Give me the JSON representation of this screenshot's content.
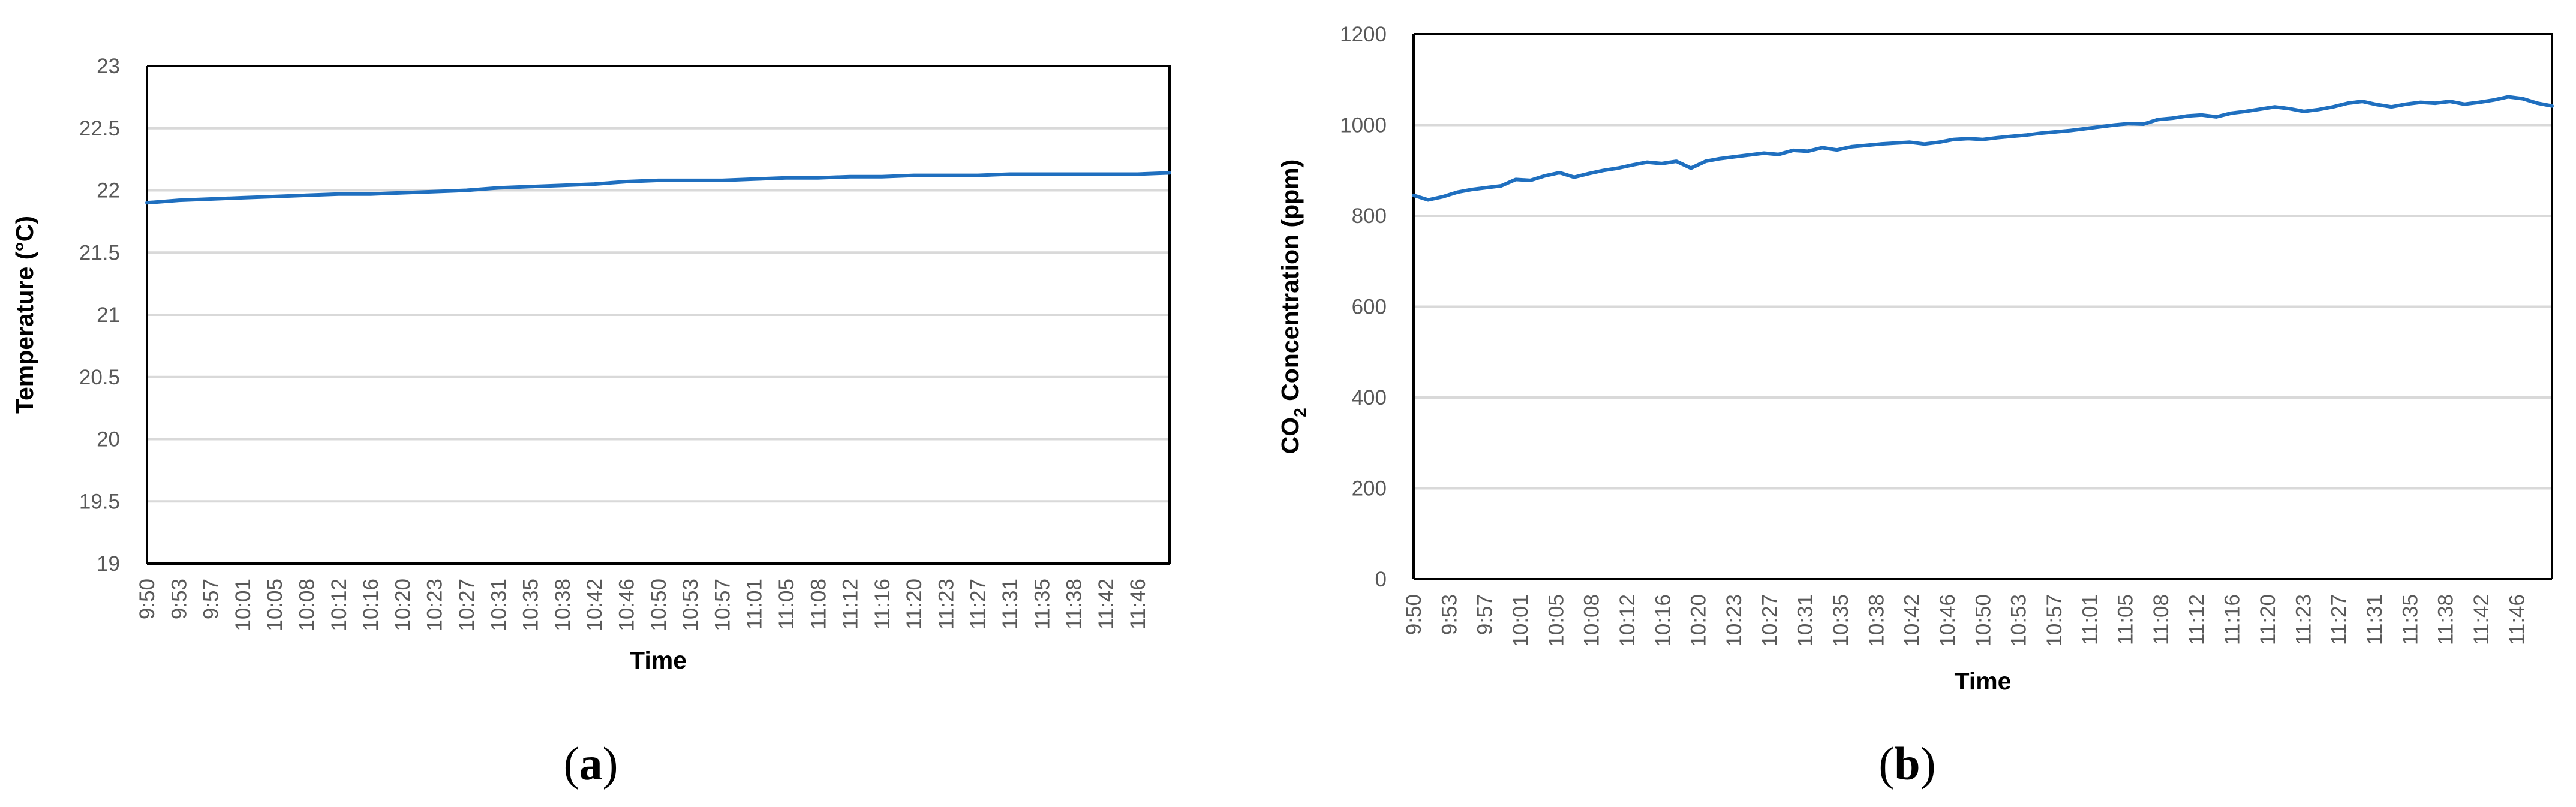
{
  "colors": {
    "series": "#1f6fbf",
    "grid": "#d9d9d9",
    "tick_text": "#595959"
  },
  "chart_data": [
    {
      "type": "line",
      "panel_label": "(a)",
      "xlabel": "Time",
      "ylabel": "Temperature (°C)",
      "ylim": [
        19,
        23
      ],
      "y_ticks": [
        "19",
        "19.5",
        "20",
        "20.5",
        "21",
        "21.5",
        "22",
        "22.5",
        "23"
      ],
      "x_ticks": [
        "9:50",
        "9:53",
        "9:57",
        "10:01",
        "10:05",
        "10:08",
        "10:12",
        "10:16",
        "10:20",
        "10:23",
        "10:27",
        "10:31",
        "10:35",
        "10:38",
        "10:42",
        "10:46",
        "10:50",
        "10:53",
        "10:57",
        "11:01",
        "11:05",
        "11:08",
        "11:12",
        "11:16",
        "11:20",
        "11:23",
        "11:27",
        "11:31",
        "11:35",
        "11:38",
        "11:42",
        "11:46"
      ],
      "grid": true,
      "legend": "none",
      "series": [
        {
          "values": [
            21.9,
            21.92,
            21.93,
            21.94,
            21.95,
            21.96,
            21.97,
            21.97,
            21.98,
            21.99,
            22.0,
            22.02,
            22.03,
            22.04,
            22.05,
            22.07,
            22.08,
            22.08,
            22.08,
            22.09,
            22.1,
            22.1,
            22.11,
            22.11,
            22.12,
            22.12,
            22.12,
            22.13,
            22.13,
            22.13,
            22.13,
            22.13,
            22.14
          ]
        }
      ]
    },
    {
      "type": "line",
      "panel_label": "(b)",
      "xlabel": "Time",
      "ylabel_main": "CO",
      "ylabel_sub": "2",
      "ylabel_rest": " Concentration (ppm)",
      "ylim": [
        0,
        1200
      ],
      "y_ticks": [
        "0",
        "200",
        "400",
        "600",
        "800",
        "1000",
        "1200"
      ],
      "x_ticks": [
        "9:50",
        "9:53",
        "9:57",
        "10:01",
        "10:05",
        "10:08",
        "10:12",
        "10:16",
        "10:20",
        "10:23",
        "10:27",
        "10:31",
        "10:35",
        "10:38",
        "10:42",
        "10:46",
        "10:50",
        "10:53",
        "10:57",
        "11:01",
        "11:05",
        "11:08",
        "11:12",
        "11:16",
        "11:20",
        "11:23",
        "11:27",
        "11:31",
        "11:35",
        "11:38",
        "11:42",
        "11:46"
      ],
      "grid": true,
      "legend": "none",
      "series": [
        {
          "values": [
            845,
            835,
            842,
            852,
            858,
            862,
            866,
            880,
            878,
            888,
            895,
            885,
            893,
            900,
            905,
            912,
            918,
            915,
            920,
            905,
            920,
            926,
            930,
            934,
            938,
            935,
            944,
            942,
            950,
            945,
            952,
            955,
            958,
            960,
            962,
            958,
            962,
            968,
            970,
            968,
            972,
            975,
            978,
            982,
            985,
            988,
            992,
            996,
            1000,
            1003,
            1002,
            1012,
            1015,
            1020,
            1022,
            1018,
            1026,
            1030,
            1035,
            1040,
            1036,
            1030,
            1034,
            1040,
            1048,
            1052,
            1045,
            1040,
            1046,
            1050,
            1048,
            1052,
            1046,
            1050,
            1055,
            1062,
            1058,
            1048,
            1042
          ]
        }
      ]
    }
  ]
}
